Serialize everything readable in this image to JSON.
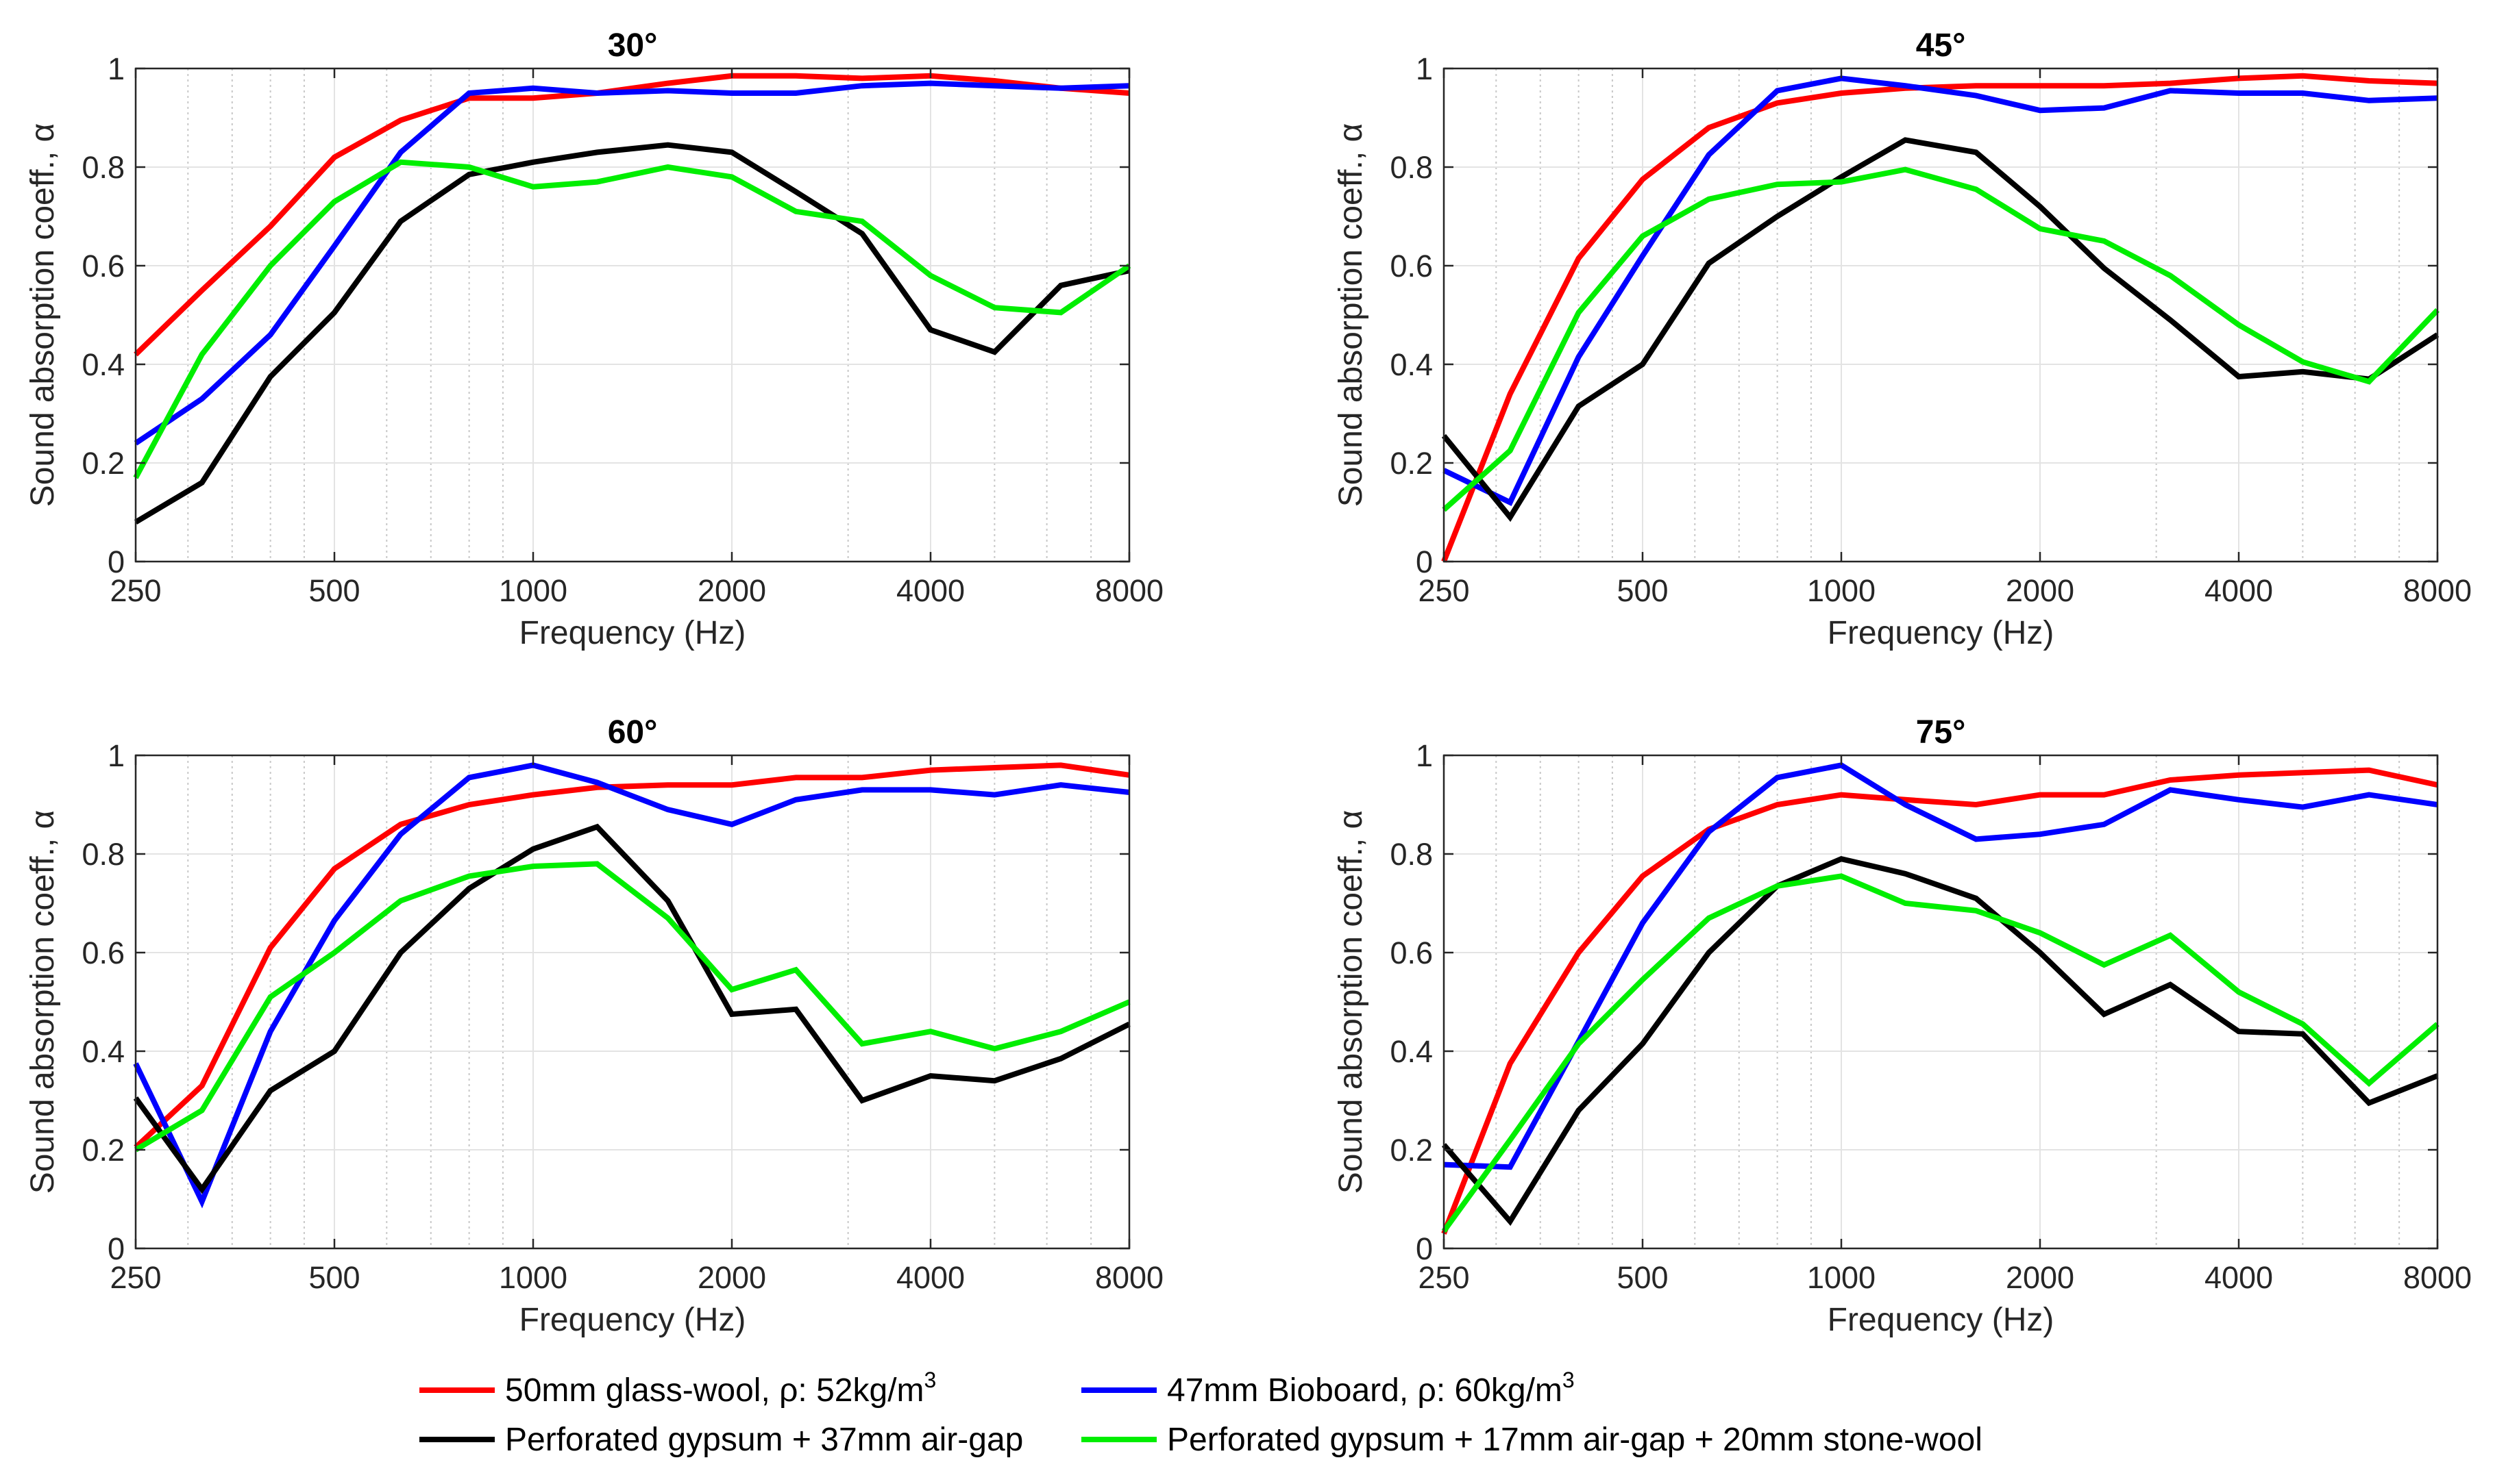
{
  "chart_data": {
    "type": "line",
    "x": [
      250,
      315,
      400,
      500,
      630,
      800,
      1000,
      1250,
      1600,
      2000,
      2500,
      3150,
      4000,
      5000,
      6300,
      8000
    ],
    "xscale": "log",
    "xlim": [
      250,
      8000
    ],
    "ylim": [
      0,
      1
    ],
    "xticks": [
      "250",
      "500",
      "1000",
      "2000",
      "4000",
      "8000"
    ],
    "yticks": [
      "0",
      "0.2",
      "0.4",
      "0.6",
      "0.8",
      "1"
    ],
    "xlabel": "Frequency (Hz)",
    "ylabel": "Sound absorption coeff., α",
    "grid": true,
    "series_styles": [
      {
        "color": "#ff0000"
      },
      {
        "color": "#0000ff"
      },
      {
        "color": "#000000"
      },
      {
        "color": "#00ee00"
      }
    ],
    "legend": [
      {
        "label_main": "50mm glass-wool, ρ: 52kg/m",
        "label_sup": "3"
      },
      {
        "label_main": "47mm Bioboard, ρ: 60kg/m",
        "label_sup": "3"
      },
      {
        "label_main": "Perforated gypsum + 37mm air-gap",
        "label_sup": ""
      },
      {
        "label_main": "Perforated gypsum + 17mm air-gap + 20mm stone-wool",
        "label_sup": ""
      }
    ],
    "panels": [
      {
        "title": "30°",
        "series": [
          {
            "name": "50mm glass-wool",
            "values": [
              0.42,
              0.55,
              0.68,
              0.82,
              0.895,
              0.94,
              0.94,
              0.95,
              0.97,
              0.985,
              0.985,
              0.98,
              0.985,
              0.975,
              0.96,
              0.95
            ]
          },
          {
            "name": "47mm Bioboard",
            "values": [
              0.24,
              0.33,
              0.46,
              0.64,
              0.83,
              0.95,
              0.96,
              0.95,
              0.955,
              0.95,
              0.95,
              0.965,
              0.97,
              0.965,
              0.96,
              0.965
            ]
          },
          {
            "name": "Perforated gypsum + 37mm air-gap",
            "values": [
              0.08,
              0.16,
              0.375,
              0.505,
              0.69,
              0.785,
              0.81,
              0.83,
              0.845,
              0.83,
              0.75,
              0.665,
              0.47,
              0.425,
              0.56,
              0.59
            ]
          },
          {
            "name": "Perforated gypsum + 17mm air-gap + 20mm stone-wool",
            "values": [
              0.17,
              0.42,
              0.6,
              0.73,
              0.81,
              0.8,
              0.76,
              0.77,
              0.8,
              0.78,
              0.71,
              0.69,
              0.58,
              0.515,
              0.505,
              0.6
            ]
          }
        ]
      },
      {
        "title": "45°",
        "series": [
          {
            "name": "50mm glass-wool",
            "values": [
              0.0,
              0.34,
              0.615,
              0.775,
              0.88,
              0.93,
              0.95,
              0.96,
              0.965,
              0.965,
              0.965,
              0.97,
              0.98,
              0.985,
              0.975,
              0.97
            ]
          },
          {
            "name": "47mm Bioboard",
            "values": [
              0.185,
              0.12,
              0.415,
              0.62,
              0.825,
              0.955,
              0.98,
              0.965,
              0.945,
              0.915,
              0.92,
              0.955,
              0.95,
              0.95,
              0.935,
              0.94
            ]
          },
          {
            "name": "Perforated gypsum + 37mm air-gap",
            "values": [
              0.255,
              0.09,
              0.315,
              0.4,
              0.605,
              0.7,
              0.78,
              0.855,
              0.83,
              0.72,
              0.595,
              0.49,
              0.375,
              0.385,
              0.37,
              0.46
            ]
          },
          {
            "name": "Perforated gypsum + 17mm air-gap + 20mm stone-wool",
            "values": [
              0.105,
              0.225,
              0.505,
              0.66,
              0.735,
              0.765,
              0.77,
              0.795,
              0.755,
              0.675,
              0.65,
              0.58,
              0.48,
              0.405,
              0.365,
              0.51
            ]
          }
        ]
      },
      {
        "title": "60°",
        "series": [
          {
            "name": "50mm glass-wool",
            "values": [
              0.205,
              0.33,
              0.61,
              0.77,
              0.86,
              0.9,
              0.92,
              0.935,
              0.94,
              0.94,
              0.955,
              0.955,
              0.97,
              0.975,
              0.98,
              0.96
            ]
          },
          {
            "name": "47mm Bioboard",
            "values": [
              0.375,
              0.095,
              0.44,
              0.665,
              0.84,
              0.955,
              0.98,
              0.945,
              0.89,
              0.86,
              0.91,
              0.93,
              0.93,
              0.92,
              0.94,
              0.925
            ]
          },
          {
            "name": "Perforated gypsum + 37mm air-gap",
            "values": [
              0.305,
              0.12,
              0.32,
              0.4,
              0.6,
              0.73,
              0.81,
              0.855,
              0.705,
              0.475,
              0.485,
              0.3,
              0.35,
              0.34,
              0.385,
              0.455
            ]
          },
          {
            "name": "Perforated gypsum + 17mm air-gap + 20mm stone-wool",
            "values": [
              0.2,
              0.28,
              0.51,
              0.6,
              0.705,
              0.755,
              0.775,
              0.78,
              0.67,
              0.525,
              0.565,
              0.415,
              0.44,
              0.405,
              0.44,
              0.5
            ]
          }
        ]
      },
      {
        "title": "75°",
        "series": [
          {
            "name": "50mm glass-wool",
            "values": [
              0.03,
              0.375,
              0.6,
              0.755,
              0.85,
              0.9,
              0.92,
              0.91,
              0.9,
              0.92,
              0.92,
              0.95,
              0.96,
              0.965,
              0.97,
              0.94
            ]
          },
          {
            "name": "47mm Bioboard",
            "values": [
              0.17,
              0.165,
              0.42,
              0.66,
              0.845,
              0.955,
              0.98,
              0.9,
              0.83,
              0.84,
              0.86,
              0.93,
              0.91,
              0.895,
              0.92,
              0.9
            ]
          },
          {
            "name": "Perforated gypsum + 37mm air-gap",
            "values": [
              0.21,
              0.055,
              0.28,
              0.415,
              0.6,
              0.735,
              0.79,
              0.76,
              0.71,
              0.6,
              0.475,
              0.535,
              0.44,
              0.435,
              0.295,
              0.35
            ]
          },
          {
            "name": "Perforated gypsum + 17mm air-gap + 20mm stone-wool",
            "values": [
              0.035,
              0.22,
              0.415,
              0.545,
              0.67,
              0.735,
              0.755,
              0.7,
              0.685,
              0.64,
              0.575,
              0.635,
              0.52,
              0.455,
              0.335,
              0.455
            ]
          }
        ]
      }
    ]
  }
}
